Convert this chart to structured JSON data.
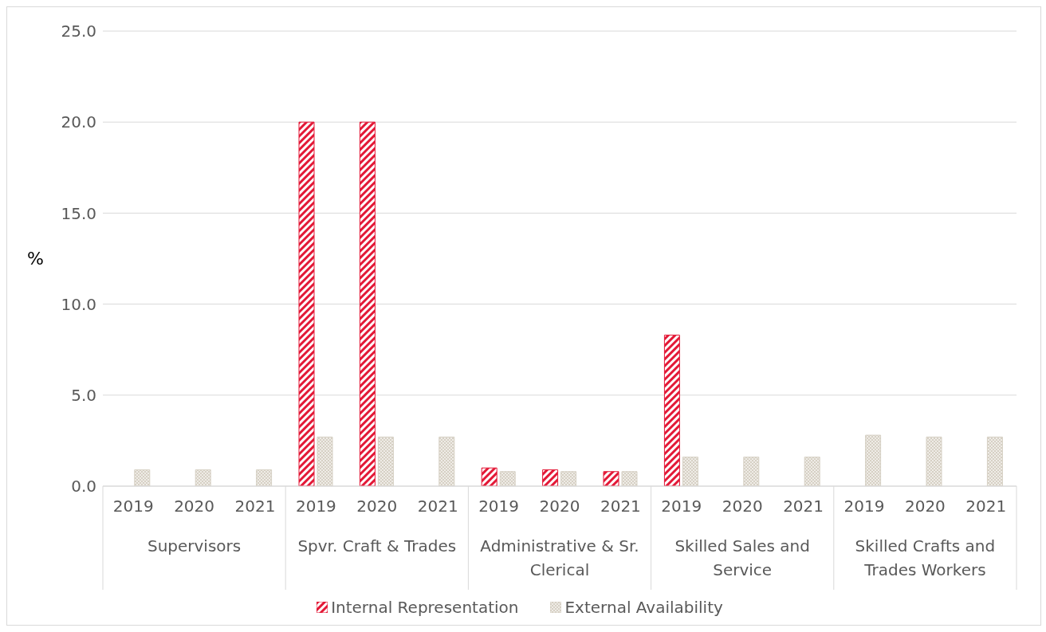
{
  "chart_data": {
    "type": "bar",
    "ylabel": "%",
    "categories": [
      "2019",
      "2020",
      "2021",
      "2019",
      "2020",
      "2021",
      "2019",
      "2020",
      "2021",
      "2019",
      "2020",
      "2021",
      "2019",
      "2020",
      "2021"
    ],
    "annotations": [
      "Supervisors",
      "Spvr. Craft & Trades",
      "Administrative & Sr. Clerical",
      "Skilled Sales and Service",
      "Skilled Crafts and Trades Workers"
    ],
    "series": [
      {
        "name": "Internal Representation",
        "color": "#e31937",
        "values": [
          0,
          0,
          0,
          20,
          20,
          0,
          1.0,
          0.9,
          0.8,
          8.3,
          0,
          0,
          0,
          0,
          0
        ]
      },
      {
        "name": "External Availability",
        "color": "#d6d0c4",
        "values": [
          0.9,
          0.9,
          0.9,
          2.7,
          2.7,
          2.7,
          0.8,
          0.8,
          0.8,
          1.6,
          1.6,
          1.6,
          2.8,
          2.7,
          2.7
        ]
      }
    ],
    "ylim": [
      0,
      25
    ],
    "yticks": [
      {
        "value": 0,
        "label": "0.0"
      },
      {
        "value": 5,
        "label": "5.0"
      },
      {
        "value": 10,
        "label": "10.0"
      },
      {
        "value": 15,
        "label": "15.0"
      },
      {
        "value": 20,
        "label": "20.0"
      },
      {
        "value": 25,
        "label": "25.0"
      }
    ],
    "grid": "y",
    "legend": "bottom"
  }
}
